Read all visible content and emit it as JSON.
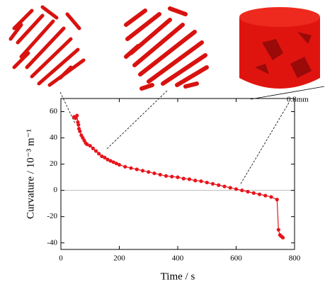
{
  "chart_data": {
    "type": "line",
    "x_label": "Time / s",
    "y_label": "Curvature / 10⁻³ m⁻¹",
    "annotation": "0.8mm",
    "xlim": [
      0,
      800
    ],
    "xticks": [
      0,
      200,
      400,
      600,
      800
    ],
    "ylim": [
      -45,
      70
    ],
    "yticks": [
      -40,
      -20,
      0,
      20,
      40,
      60
    ],
    "zero_line": true,
    "series": [
      {
        "color": "#e8141c",
        "x": [
          45,
          50,
          55,
          58,
          60,
          62,
          65,
          70,
          75,
          80,
          85,
          90,
          100,
          110,
          120,
          130,
          140,
          150,
          160,
          170,
          180,
          190,
          200,
          220,
          240,
          260,
          280,
          300,
          320,
          340,
          360,
          380,
          400,
          420,
          440,
          460,
          480,
          500,
          520,
          540,
          560,
          580,
          600,
          620,
          640,
          660,
          680,
          700,
          720,
          740,
          745,
          750,
          755,
          760
        ],
        "values": [
          56,
          55,
          57,
          52,
          50,
          47,
          45,
          42,
          40,
          38,
          36,
          35,
          34,
          32,
          30,
          28,
          26,
          25,
          23.5,
          22.5,
          21.5,
          20.5,
          19.5,
          18,
          17,
          16,
          15,
          14,
          13,
          12,
          11,
          10.5,
          10,
          9,
          8.5,
          7.5,
          7,
          6,
          5,
          4,
          3,
          2,
          1,
          0,
          -1,
          -2,
          -3,
          -4,
          -5,
          -7,
          -30,
          -34,
          -35,
          -36
        ]
      }
    ]
  }
}
